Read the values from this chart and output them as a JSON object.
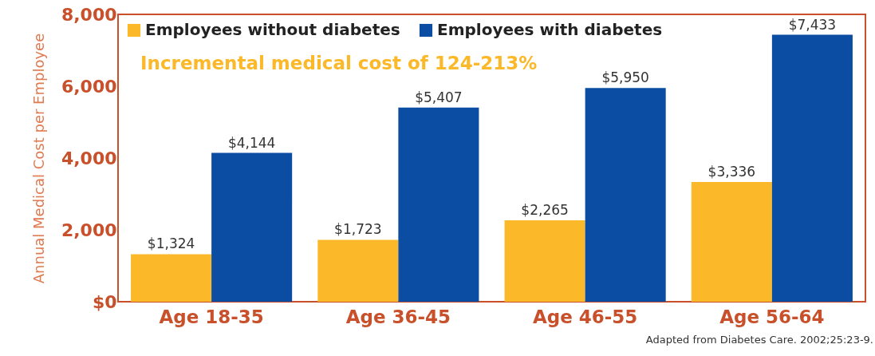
{
  "chart_data": {
    "type": "bar",
    "ylabel": "Annual Medical Cost per Employee",
    "categories": [
      "Age 18-35",
      "Age 36-45",
      "Age 46-55",
      "Age 56-64"
    ],
    "series": [
      {
        "name": "Employees without diabetes",
        "color": "#fbb829",
        "values": [
          1324,
          1723,
          2265,
          3336
        ],
        "value_labels": [
          "$1,324",
          "$1,723",
          "$2,265",
          "$3,336"
        ]
      },
      {
        "name": "Employees with diabetes",
        "color": "#0a4da2",
        "values": [
          4144,
          5407,
          5950,
          7433
        ],
        "value_labels": [
          "$4,144",
          "$5,407",
          "$5,950",
          "$7,433"
        ]
      }
    ],
    "ylim": [
      0,
      8000
    ],
    "yticks": [
      {
        "value": 0,
        "label": "$0"
      },
      {
        "value": 2000,
        "label": "2,000"
      },
      {
        "value": 4000,
        "label": "4,000"
      },
      {
        "value": 6000,
        "label": "6,000"
      },
      {
        "value": 8000,
        "label": "8,000"
      }
    ],
    "grid": false,
    "legend": "top left",
    "annotations": [
      "Incremental medical cost of 124-213%",
      "Adapted from Diabetes Care. 2002;25:23-9."
    ]
  }
}
